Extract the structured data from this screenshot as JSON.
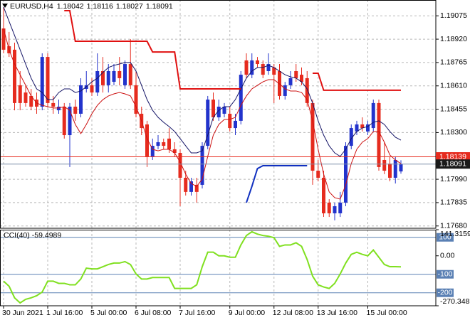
{
  "chart_data": [
    {
      "type": "candlestick",
      "title": "EURUSD,H4",
      "categories": [
        "30 Jun 2021",
        null,
        null,
        null,
        null,
        null,
        null,
        null,
        "1 Jul 16:00",
        null,
        null,
        null,
        null,
        null,
        null,
        null,
        "5 Jul 00:00",
        null,
        null,
        null,
        null,
        null,
        null,
        null,
        "6 Jul 08:00",
        null,
        null,
        null,
        null,
        null,
        null,
        null,
        "7 Jul 16:00",
        null,
        null,
        null,
        null,
        null,
        null,
        null,
        null,
        "9 Jul 00:00",
        null,
        null,
        null,
        null,
        null,
        null,
        null,
        "12 Jul 08:00",
        null,
        null,
        null,
        null,
        null,
        null,
        null,
        "13 Jul 16:00",
        null,
        null,
        null,
        null,
        null,
        null,
        null,
        null,
        "15 Jul 00:00",
        null,
        null,
        null,
        null,
        null,
        null
      ],
      "open": [
        1.18991,
        1.18873,
        1.1885,
        1.18614,
        1.18566,
        1.18543,
        1.18519,
        1.18472,
        1.18802,
        1.18496,
        1.18448,
        1.18472,
        1.18283,
        1.18472,
        1.18425,
        1.1859,
        1.18614,
        1.18566,
        1.18708,
        1.18614,
        1.18637,
        1.18708,
        1.18614,
        1.18755,
        1.18614,
        1.18425,
        1.18354,
        1.18142,
        1.18212,
        1.18236,
        1.1826,
        1.18189,
        1.18165,
        1.18,
        1.17906,
        1.17953,
        1.17953,
        1.18212,
        1.18519,
        1.18401,
        1.18425,
        1.18425,
        1.1833,
        1.18378,
        1.18779,
        1.18684,
        1.18779,
        1.18755,
        1.18708,
        1.18732,
        1.18708,
        1.18543,
        1.18614,
        1.18708,
        1.18684,
        1.18661,
        1.18496,
        1.18047,
        1.18,
        1.17835,
        1.17764,
        1.17764,
        1.17835,
        1.18212,
        1.18307,
        1.18354,
        1.18307,
        1.1833,
        1.18496,
        1.18118,
        1.18094,
        1.18,
        1.18042
      ],
      "high": [
        1.19133,
        1.18968,
        1.18897,
        1.18708,
        1.18614,
        1.1859,
        1.18566,
        1.18826,
        1.18826,
        1.18543,
        1.18519,
        1.18496,
        1.18496,
        1.18519,
        1.18661,
        1.18708,
        1.18661,
        1.18826,
        1.18802,
        1.18755,
        1.18755,
        1.18802,
        1.18779,
        1.1892,
        1.18708,
        1.18472,
        1.18378,
        1.1826,
        1.18283,
        1.1826,
        1.1833,
        1.18236,
        1.18189,
        1.18047,
        1.18,
        1.18,
        1.18236,
        1.18543,
        1.18566,
        1.18519,
        1.18496,
        1.18472,
        1.18425,
        1.18708,
        1.18826,
        1.18826,
        1.18802,
        1.18779,
        1.18826,
        1.18755,
        1.18755,
        1.18637,
        1.18708,
        1.18755,
        1.18732,
        1.18708,
        1.18519,
        1.18118,
        1.18047,
        1.17858,
        1.17835,
        1.17906,
        1.18236,
        1.18354,
        1.18378,
        1.18401,
        1.18378,
        1.18519,
        1.18519,
        1.18236,
        1.18142,
        1.18142,
        1.18116
      ],
      "low": [
        1.18826,
        1.18802,
        1.18448,
        1.18448,
        1.18472,
        1.18448,
        1.18425,
        1.18448,
        1.18472,
        1.18425,
        1.18425,
        1.1826,
        1.18071,
        1.18378,
        1.18401,
        1.18566,
        1.18543,
        1.18543,
        1.18566,
        1.18566,
        1.18614,
        1.18614,
        1.1859,
        1.1859,
        1.18401,
        1.18283,
        1.18071,
        1.18118,
        1.18189,
        1.18189,
        1.18165,
        1.18142,
        1.17811,
        1.17882,
        1.17882,
        1.17835,
        1.17929,
        1.18189,
        1.18378,
        1.18378,
        1.18401,
        1.18307,
        1.18283,
        1.18354,
        1.18661,
        1.18661,
        1.18732,
        1.18661,
        1.18684,
        1.18496,
        1.18519,
        1.18519,
        1.1859,
        1.18637,
        1.18614,
        1.18472,
        1.17953,
        1.17976,
        1.1774,
        1.1774,
        1.17717,
        1.1774,
        1.17811,
        1.18189,
        1.18283,
        1.18307,
        1.18283,
        1.18307,
        1.18047,
        1.18024,
        1.17976,
        1.17962,
        1.18027
      ],
      "close": [
        1.1885,
        1.18826,
        1.18496,
        1.18496,
        1.18496,
        1.18472,
        1.18472,
        1.18802,
        1.18496,
        1.18472,
        1.18472,
        1.18283,
        1.18472,
        1.18425,
        1.18614,
        1.18614,
        1.18566,
        1.18708,
        1.18614,
        1.18708,
        1.18708,
        1.18661,
        1.18755,
        1.18614,
        1.18425,
        1.1833,
        1.18142,
        1.18212,
        1.18236,
        1.18212,
        1.18189,
        1.18165,
        1.18,
        1.17906,
        1.17976,
        1.17906,
        1.18212,
        1.18519,
        1.18401,
        1.18472,
        1.18472,
        1.1833,
        1.18378,
        1.18684,
        1.18684,
        1.18779,
        1.18755,
        1.18684,
        1.18755,
        1.18684,
        1.18543,
        1.18614,
        1.18661,
        1.18661,
        1.18637,
        1.18496,
        1.18047,
        1.18,
        1.17764,
        1.17764,
        1.17811,
        1.17835,
        1.18212,
        1.1833,
        1.18354,
        1.1833,
        1.18354,
        1.18496,
        1.18071,
        1.18047,
        1.18,
        1.18118,
        1.18091
      ],
      "up_color": "#2233cc",
      "down_color": "#e62b1e",
      "lines": [
        {
          "color": "#141466",
          "width": 1,
          "values": [
            1.19133,
            1.19038,
            1.18944,
            1.1885,
            1.18755,
            1.18661,
            1.1859,
            1.18566,
            1.18519,
            1.18519,
            1.18566,
            1.1859,
            1.1859,
            1.18566,
            1.18576,
            1.18604,
            1.18637,
            1.18661,
            1.18699,
            1.18732,
            1.18746,
            1.18755,
            1.18765,
            1.18765,
            1.18708,
            1.18614,
            1.18519,
            1.18448,
            1.18401,
            1.18368,
            1.1834,
            1.18307,
            1.1826,
            1.18212,
            1.18165,
            1.18165,
            1.18179,
            1.18283,
            1.18401,
            1.18448,
            1.18472,
            1.18472,
            1.18519,
            1.1859,
            1.18661,
            1.18708,
            1.18732,
            1.18732,
            1.18746,
            1.18732,
            1.18708,
            1.18684,
            1.1867,
            1.18661,
            1.18637,
            1.1859,
            1.18496,
            1.18378,
            1.18283,
            1.18212,
            1.18165,
            1.18142,
            1.18189,
            1.1826,
            1.18307,
            1.1833,
            1.1834,
            1.18368,
            1.18378,
            1.18354,
            1.18307,
            1.18269,
            1.1825
          ]
        },
        {
          "color": "#cc1111",
          "width": 1,
          "values": [
            1.18991,
            1.1885,
            1.18755,
            1.18684,
            1.18614,
            1.18543,
            1.18496,
            1.18481,
            1.18472,
            1.18463,
            1.18463,
            1.18472,
            1.18448,
            1.18354,
            1.18293,
            1.18354,
            1.18425,
            1.18481,
            1.18519,
            1.18543,
            1.18557,
            1.18566,
            1.18557,
            1.18543,
            1.18472,
            1.18378,
            1.1826,
            1.18189,
            1.18179,
            1.18189,
            1.18189,
            1.18165,
            1.18104,
            1.18024,
            1.17962,
            1.17943,
            1.17991,
            1.18142,
            1.18283,
            1.18354,
            1.18387,
            1.18387,
            1.18401,
            1.18481,
            1.18543,
            1.1859,
            1.18614,
            1.18637,
            1.18651,
            1.18651,
            1.18623,
            1.1859,
            1.18576,
            1.18576,
            1.18566,
            1.18519,
            1.18378,
            1.18189,
            1.18024,
            1.17906,
            1.17868,
            1.17858,
            1.17953,
            1.18094,
            1.18189,
            1.18236,
            1.1826,
            1.18307,
            1.18307,
            1.18236,
            1.18151,
            1.18118,
            1.18094
          ]
        },
        {
          "color": "#e01010",
          "width": 2,
          "values": [
            null,
            null,
            null,
            null,
            null,
            null,
            null,
            null,
            null,
            null,
            null,
            1.19109,
            1.19109,
            1.18906,
            1.18906,
            1.18906,
            1.18906,
            1.18906,
            1.18906,
            1.18906,
            1.18906,
            1.18906,
            1.18906,
            1.18906,
            1.18906,
            1.18906,
            1.18906,
            1.18835,
            1.18835,
            1.18835,
            1.18835,
            1.18835,
            1.1859,
            1.1859,
            1.1859,
            1.1859,
            1.1859,
            1.1859,
            1.1859,
            1.1859,
            1.1859,
            1.1859,
            1.1859,
            1.1859,
            null,
            null,
            null,
            null,
            null,
            null,
            null,
            null,
            null,
            null,
            null,
            null,
            1.18694,
            1.18694,
            1.18581,
            1.18581,
            1.18581,
            1.18581,
            1.18581,
            1.18581,
            1.18581,
            1.18581,
            1.18581,
            1.18581,
            1.18581,
            1.18581,
            1.18581,
            1.18581,
            1.18581
          ]
        },
        {
          "color": "#1030c0",
          "width": 2,
          "values": [
            null,
            null,
            null,
            null,
            null,
            null,
            null,
            null,
            null,
            null,
            null,
            null,
            null,
            null,
            null,
            null,
            null,
            null,
            null,
            null,
            null,
            null,
            null,
            null,
            null,
            null,
            null,
            null,
            null,
            null,
            null,
            null,
            null,
            null,
            null,
            null,
            null,
            null,
            null,
            null,
            null,
            null,
            null,
            null,
            1.17835,
            1.17943,
            1.18061,
            1.1808,
            1.1808,
            1.1808,
            1.1808,
            1.1808,
            1.1808,
            1.1808,
            1.1808,
            1.1808,
            null,
            null,
            null,
            null,
            null,
            null,
            null,
            null,
            null,
            null,
            null,
            null,
            null,
            null,
            null,
            null,
            null
          ]
        }
      ],
      "ask_line": 1.18139,
      "ask_color": "#e62b1e",
      "close_line_color": "#7f8fa8",
      "ylim": [
        1.1766,
        1.1918
      ],
      "yticks": [
        1.19075,
        {
          "value": 1.1892,
          "label": "1.18920"
        },
        1.18765,
        {
          "value": 1.1861,
          "label": "1.18610"
        },
        1.18455,
        {
          "value": 1.183,
          "label": "1.18300"
        },
        {
          "value": 1.1799,
          "label": "1.17990"
        },
        1.17835,
        {
          "value": 1.1768,
          "label": "1.17680"
        }
      ],
      "grid": true
    },
    {
      "type": "line",
      "title": "CCI(40)",
      "color": "#80e020",
      "values": [
        -137.3,
        -164.7,
        -227.5,
        -254.9,
        -235.3,
        -227.5,
        -215.7,
        -196.1,
        -137.3,
        -137.3,
        -149.0,
        -149.0,
        -156.9,
        -156.9,
        -125.5,
        -66.7,
        -70.6,
        -70.6,
        -58.8,
        -47.1,
        -39.2,
        -39.2,
        -31.4,
        -47.1,
        -98.0,
        -125.5,
        -125.5,
        -117.6,
        -117.6,
        -117.6,
        -117.6,
        -176.5,
        -176.5,
        -176.5,
        -176.5,
        -156.9,
        -58.8,
        19.6,
        19.6,
        0,
        0,
        -7.8,
        -7.8,
        58.8,
        109.8,
        130,
        117.6,
        109.8,
        105.9,
        98.0,
        51.0,
        58.8,
        58.8,
        70.6,
        51.0,
        -19.6,
        -109.8,
        -156.9,
        -168.6,
        -176.5,
        -149.0,
        -98.0,
        -39.2,
        7.8,
        19.6,
        7.8,
        0,
        31.4,
        -7.8,
        -47.1,
        -58.8,
        -58.8,
        -59.4989
      ],
      "ylim": [
        -270.3482,
        141.3159
      ],
      "yticks": [
        141.3159,
        {
          "value": 0,
          "label": "0.00"
        },
        -270.3482
      ],
      "levels": [
        100,
        -100,
        -200
      ],
      "level_color": "#5a80b4"
    }
  ]
}
